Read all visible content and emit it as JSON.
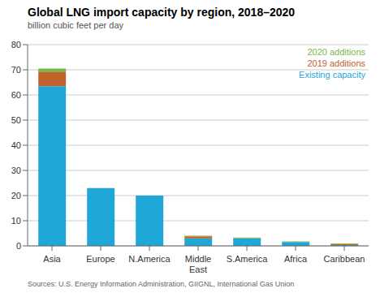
{
  "chart_data": {
    "type": "bar",
    "stacked": true,
    "title": "Global LNG import capacity by region, 2018–2020",
    "subtitle": "billion cubic feet per day",
    "categories": [
      "Asia",
      "Europe",
      "N.America",
      "Middle\nEast",
      "S.America",
      "Africa",
      "Caribbean"
    ],
    "series": [
      {
        "name": "Existing capacity",
        "color": "#1ea7d7",
        "values": [
          63.5,
          23.0,
          20.0,
          3.0,
          3.0,
          1.5,
          0.3
        ]
      },
      {
        "name": "2019 additions",
        "color": "#c0622c",
        "values": [
          5.5,
          0,
          0,
          0.8,
          0,
          0,
          0.5
        ]
      },
      {
        "name": "2020 additions",
        "color": "#7ab648",
        "values": [
          1.5,
          0,
          0,
          0.2,
          0.3,
          0.3,
          0.2
        ]
      }
    ],
    "ylim": [
      0,
      80
    ],
    "yticks": [
      0,
      10,
      20,
      30,
      40,
      50,
      60,
      70,
      80
    ],
    "grid": true,
    "legend": "upper right",
    "source": "Sources: U.S. Energy Information Administration, GIIGNL, International Gas Union"
  }
}
